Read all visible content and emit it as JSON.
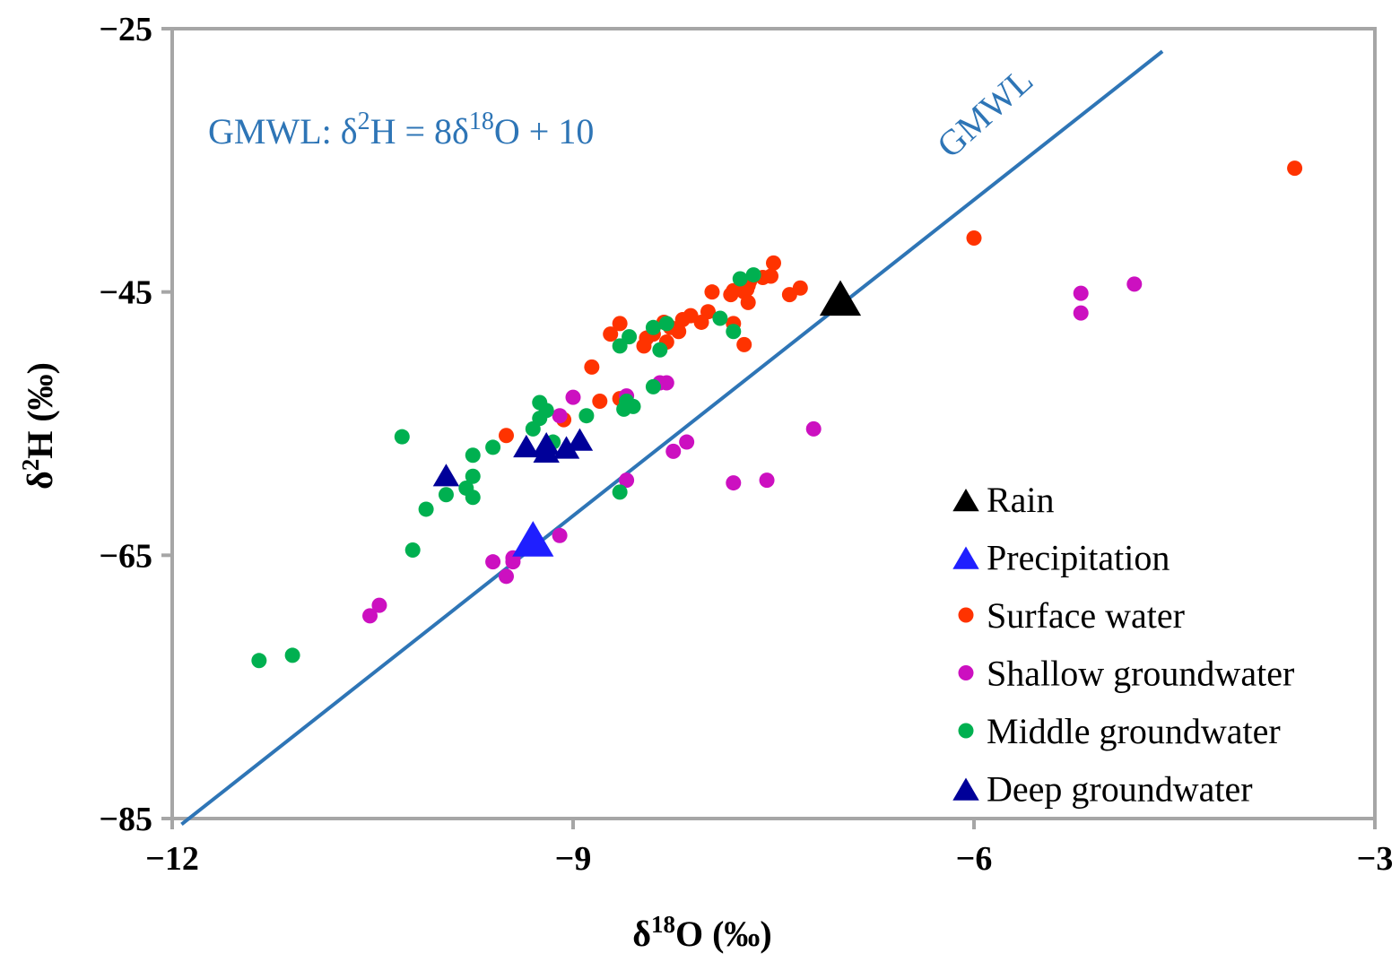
{
  "chart_data": {
    "type": "scatter",
    "title": "",
    "xlabel": {
      "prefix": "δ",
      "sup": "18",
      "suffix": "O (‰)"
    },
    "ylabel": {
      "prefix": "δ",
      "sup": "2",
      "suffix": "H (‰)"
    },
    "xlim": [
      -12,
      -3
    ],
    "ylim": [
      -85,
      -25
    ],
    "x_ticks": [
      -12,
      -9,
      -6,
      -3
    ],
    "x_tick_labels": [
      "−12",
      "−9",
      "−6",
      "−3"
    ],
    "y_ticks": [
      -85,
      -65,
      -45,
      -25
    ],
    "y_tick_labels": [
      "−85",
      "−65",
      "−45",
      "−25"
    ],
    "grid": false,
    "legend_position": "bottom-right",
    "colors": {
      "frame": "#a6a6a6",
      "gmwl": "#2e75b6",
      "rain": "#000000",
      "precipitation": "#1f1fff",
      "surface": "#ff3300",
      "shallow": "#cc10c0",
      "middle": "#00b050",
      "deep": "#000099"
    },
    "gmwl_line": {
      "name": "GMWL",
      "slope": 8,
      "intercept": 10,
      "x_range": [
        -11.93,
        -4.59
      ],
      "label": "GMWL",
      "equation": {
        "lhs_prefix": "GMWL: δ",
        "lhs_sup": "2",
        "mid": "H = 8δ",
        "rhs_sup": "18",
        "rhs": "O + 10"
      }
    },
    "series": [
      {
        "key": "rain",
        "name": "Rain",
        "marker": "triangle",
        "size": "large",
        "points": [
          [
            -7.0,
            -45.6
          ]
        ]
      },
      {
        "key": "precipitation",
        "name": "Precipitation",
        "marker": "triangle",
        "size": "large",
        "points": [
          [
            -9.3,
            -63.9
          ]
        ]
      },
      {
        "key": "surface",
        "name": "Surface water",
        "marker": "circle",
        "points": [
          [
            -3.6,
            -35.6
          ],
          [
            -6.0,
            -40.9
          ],
          [
            -7.5,
            -42.8
          ],
          [
            -7.52,
            -43.8
          ],
          [
            -7.58,
            -43.9
          ],
          [
            -7.68,
            -44.2
          ],
          [
            -7.69,
            -44.5
          ],
          [
            -7.7,
            -44.8
          ],
          [
            -7.72,
            -45.0
          ],
          [
            -7.8,
            -44.9
          ],
          [
            -7.82,
            -45.2
          ],
          [
            -7.3,
            -44.7
          ],
          [
            -7.38,
            -45.2
          ],
          [
            -7.69,
            -45.8
          ],
          [
            -7.96,
            -45.0
          ],
          [
            -7.99,
            -46.5
          ],
          [
            -7.8,
            -47.4
          ],
          [
            -8.04,
            -47.3
          ],
          [
            -8.12,
            -46.8
          ],
          [
            -8.18,
            -47.1
          ],
          [
            -8.21,
            -48.0
          ],
          [
            -8.27,
            -47.7
          ],
          [
            -8.32,
            -47.3
          ],
          [
            -8.4,
            -48.2
          ],
          [
            -8.45,
            -48.5
          ],
          [
            -8.3,
            -48.8
          ],
          [
            -8.47,
            -49.1
          ],
          [
            -8.65,
            -47.4
          ],
          [
            -8.72,
            -48.2
          ],
          [
            -7.72,
            -49.0
          ],
          [
            -8.86,
            -50.7
          ],
          [
            -8.8,
            -53.3
          ],
          [
            -8.65,
            -53.1
          ],
          [
            -9.07,
            -54.7
          ],
          [
            -9.5,
            -55.9
          ]
        ]
      },
      {
        "key": "shallow",
        "name": "Shallow groundwater",
        "marker": "circle",
        "points": [
          [
            -4.8,
            -44.4
          ],
          [
            -5.2,
            -45.1
          ],
          [
            -5.2,
            -46.6
          ],
          [
            -7.2,
            -55.4
          ],
          [
            -8.15,
            -56.4
          ],
          [
            -8.25,
            -57.1
          ],
          [
            -8.6,
            -59.3
          ],
          [
            -7.55,
            -59.3
          ],
          [
            -7.8,
            -59.5
          ],
          [
            -8.3,
            -51.9
          ],
          [
            -8.35,
            -51.9
          ],
          [
            -8.6,
            -52.9
          ],
          [
            -9.0,
            -53.0
          ],
          [
            -9.1,
            -54.4
          ],
          [
            -9.1,
            -63.5
          ],
          [
            -9.45,
            -65.2
          ],
          [
            -9.45,
            -65.5
          ],
          [
            -9.6,
            -65.5
          ],
          [
            -9.5,
            -66.6
          ],
          [
            -10.45,
            -68.8
          ],
          [
            -10.52,
            -69.6
          ]
        ]
      },
      {
        "key": "middle",
        "name": "Middle groundwater",
        "marker": "circle",
        "points": [
          [
            -7.65,
            -43.7
          ],
          [
            -7.75,
            -44.0
          ],
          [
            -7.9,
            -47.0
          ],
          [
            -7.8,
            -48.0
          ],
          [
            -8.3,
            -47.4
          ],
          [
            -8.4,
            -47.7
          ],
          [
            -8.58,
            -48.4
          ],
          [
            -8.65,
            -49.1
          ],
          [
            -8.35,
            -49.4
          ],
          [
            -8.4,
            -52.2
          ],
          [
            -8.6,
            -53.3
          ],
          [
            -8.55,
            -53.7
          ],
          [
            -8.62,
            -53.9
          ],
          [
            -8.9,
            -54.4
          ],
          [
            -9.2,
            -54.0
          ],
          [
            -9.25,
            -54.6
          ],
          [
            -9.25,
            -53.4
          ],
          [
            -9.3,
            -55.4
          ],
          [
            -9.15,
            -56.4
          ],
          [
            -9.6,
            -56.8
          ],
          [
            -9.75,
            -57.4
          ],
          [
            -9.75,
            -59.0
          ],
          [
            -9.8,
            -59.9
          ],
          [
            -9.75,
            -60.6
          ],
          [
            -9.95,
            -60.4
          ],
          [
            -10.1,
            -61.5
          ],
          [
            -10.2,
            -64.6
          ],
          [
            -10.28,
            -56.0
          ],
          [
            -8.65,
            -60.2
          ],
          [
            -11.1,
            -72.6
          ],
          [
            -11.35,
            -73.0
          ]
        ]
      },
      {
        "key": "deep",
        "name": "Deep groundwater",
        "marker": "triangle",
        "points": [
          [
            -9.95,
            -59.0
          ],
          [
            -9.35,
            -56.8
          ],
          [
            -9.2,
            -56.6
          ],
          [
            -8.95,
            -56.3
          ],
          [
            -9.05,
            -56.9
          ],
          [
            -9.2,
            -57.2
          ]
        ]
      }
    ]
  }
}
